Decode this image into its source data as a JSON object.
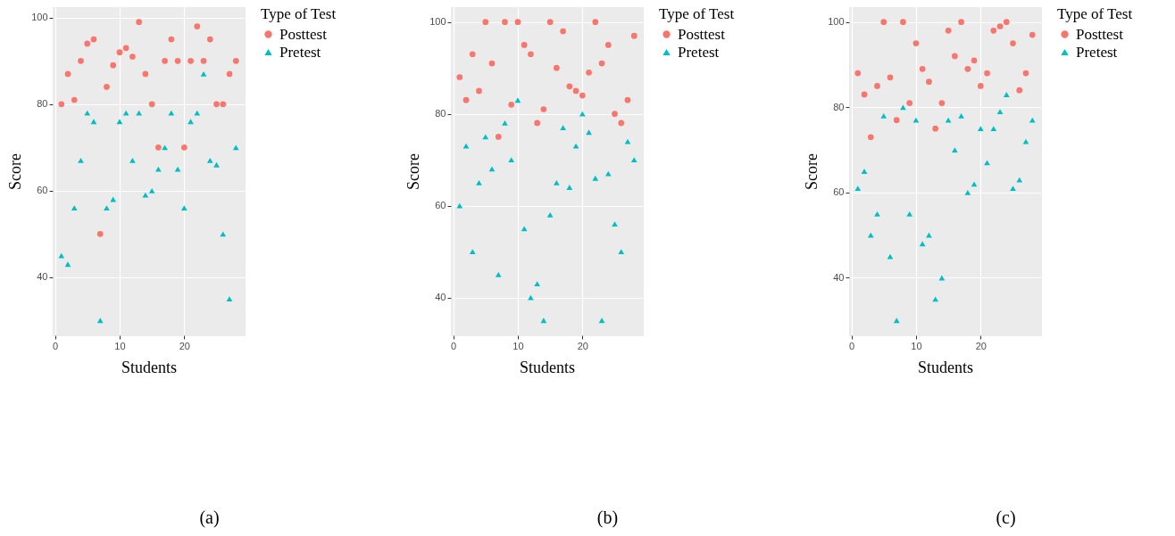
{
  "chart_data": [
    {
      "type": "scatter",
      "xlabel": "Students",
      "ylabel": "Score",
      "legend_title": "Type of Test",
      "legend": "right",
      "grid": true,
      "annotations": [
        "(a)"
      ],
      "xlim": [
        -0.35,
        29.35
      ],
      "ylim": [
        26.55,
        102.45
      ],
      "xticks": [
        0,
        10,
        20
      ],
      "yticks": [
        40,
        60,
        80,
        100
      ],
      "x": [
        1,
        2,
        3,
        4,
        5,
        6,
        7,
        8,
        9,
        10,
        11,
        12,
        13,
        14,
        15,
        16,
        17,
        18,
        19,
        20,
        21,
        22,
        23,
        24,
        25,
        26,
        27,
        28
      ],
      "series": [
        {
          "name": "Posttest",
          "color": "#f8766d",
          "marker": "circle",
          "values": [
            80,
            87,
            81,
            90,
            94,
            95,
            50,
            84,
            89,
            92,
            93,
            91,
            99,
            87,
            80,
            70,
            90,
            95,
            90,
            70,
            90,
            98,
            90,
            95,
            80,
            80,
            87,
            90
          ]
        },
        {
          "name": "Pretest",
          "color": "#00bfc4",
          "marker": "triangle",
          "values": [
            45,
            43,
            56,
            67,
            78,
            76,
            30,
            56,
            58,
            76,
            78,
            67,
            78,
            59,
            60,
            65,
            70,
            78,
            65,
            56,
            76,
            78,
            87,
            67,
            66,
            50,
            35,
            70
          ]
        }
      ]
    },
    {
      "type": "scatter",
      "xlabel": "Students",
      "ylabel": "Score",
      "legend_title": "Type of Test",
      "legend": "right",
      "grid": true,
      "annotations": [
        "(b)"
      ],
      "xlim": [
        -0.35,
        29.35
      ],
      "ylim": [
        31.75,
        103.25
      ],
      "xticks": [
        0,
        10,
        20
      ],
      "yticks": [
        40,
        60,
        80,
        100
      ],
      "x": [
        1,
        2,
        3,
        4,
        5,
        6,
        7,
        8,
        9,
        10,
        11,
        12,
        13,
        14,
        15,
        16,
        17,
        18,
        19,
        20,
        21,
        22,
        23,
        24,
        25,
        26,
        27,
        28
      ],
      "series": [
        {
          "name": "Posttest",
          "color": "#f8766d",
          "marker": "circle",
          "values": [
            88,
            83,
            93,
            85,
            100,
            91,
            75,
            100,
            82,
            100,
            95,
            93,
            78,
            81,
            100,
            90,
            98,
            86,
            85,
            84,
            89,
            100,
            91,
            95,
            80,
            78,
            83,
            97
          ]
        },
        {
          "name": "Pretest",
          "color": "#00bfc4",
          "marker": "triangle",
          "values": [
            60,
            73,
            50,
            65,
            75,
            68,
            45,
            78,
            70,
            83,
            55,
            40,
            43,
            35,
            58,
            65,
            77,
            64,
            73,
            80,
            76,
            66,
            35,
            67,
            56,
            50,
            74,
            70
          ]
        }
      ]
    },
    {
      "type": "scatter",
      "xlabel": "Students",
      "ylabel": "Score",
      "legend_title": "Type of Test",
      "legend": "right",
      "grid": true,
      "annotations": [
        "(c)"
      ],
      "xlim": [
        -0.35,
        29.35
      ],
      "ylim": [
        26.5,
        103.5
      ],
      "xticks": [
        0,
        10,
        20
      ],
      "yticks": [
        40,
        60,
        80,
        100
      ],
      "x": [
        1,
        2,
        3,
        4,
        5,
        6,
        7,
        8,
        9,
        10,
        11,
        12,
        13,
        14,
        15,
        16,
        17,
        18,
        19,
        20,
        21,
        22,
        23,
        24,
        25,
        26,
        27,
        28
      ],
      "series": [
        {
          "name": "Posttest",
          "color": "#f8766d",
          "marker": "circle",
          "values": [
            88,
            83,
            73,
            85,
            100,
            87,
            77,
            100,
            81,
            95,
            89,
            86,
            75,
            81,
            98,
            92,
            100,
            89,
            91,
            85,
            88,
            98,
            99,
            100,
            95,
            84,
            88,
            97
          ]
        },
        {
          "name": "Pretest",
          "color": "#00bfc4",
          "marker": "triangle",
          "values": [
            61,
            65,
            50,
            55,
            78,
            45,
            30,
            80,
            55,
            77,
            48,
            50,
            35,
            40,
            77,
            70,
            78,
            60,
            62,
            75,
            67,
            75,
            79,
            83,
            61,
            63,
            72,
            77
          ]
        }
      ]
    }
  ]
}
